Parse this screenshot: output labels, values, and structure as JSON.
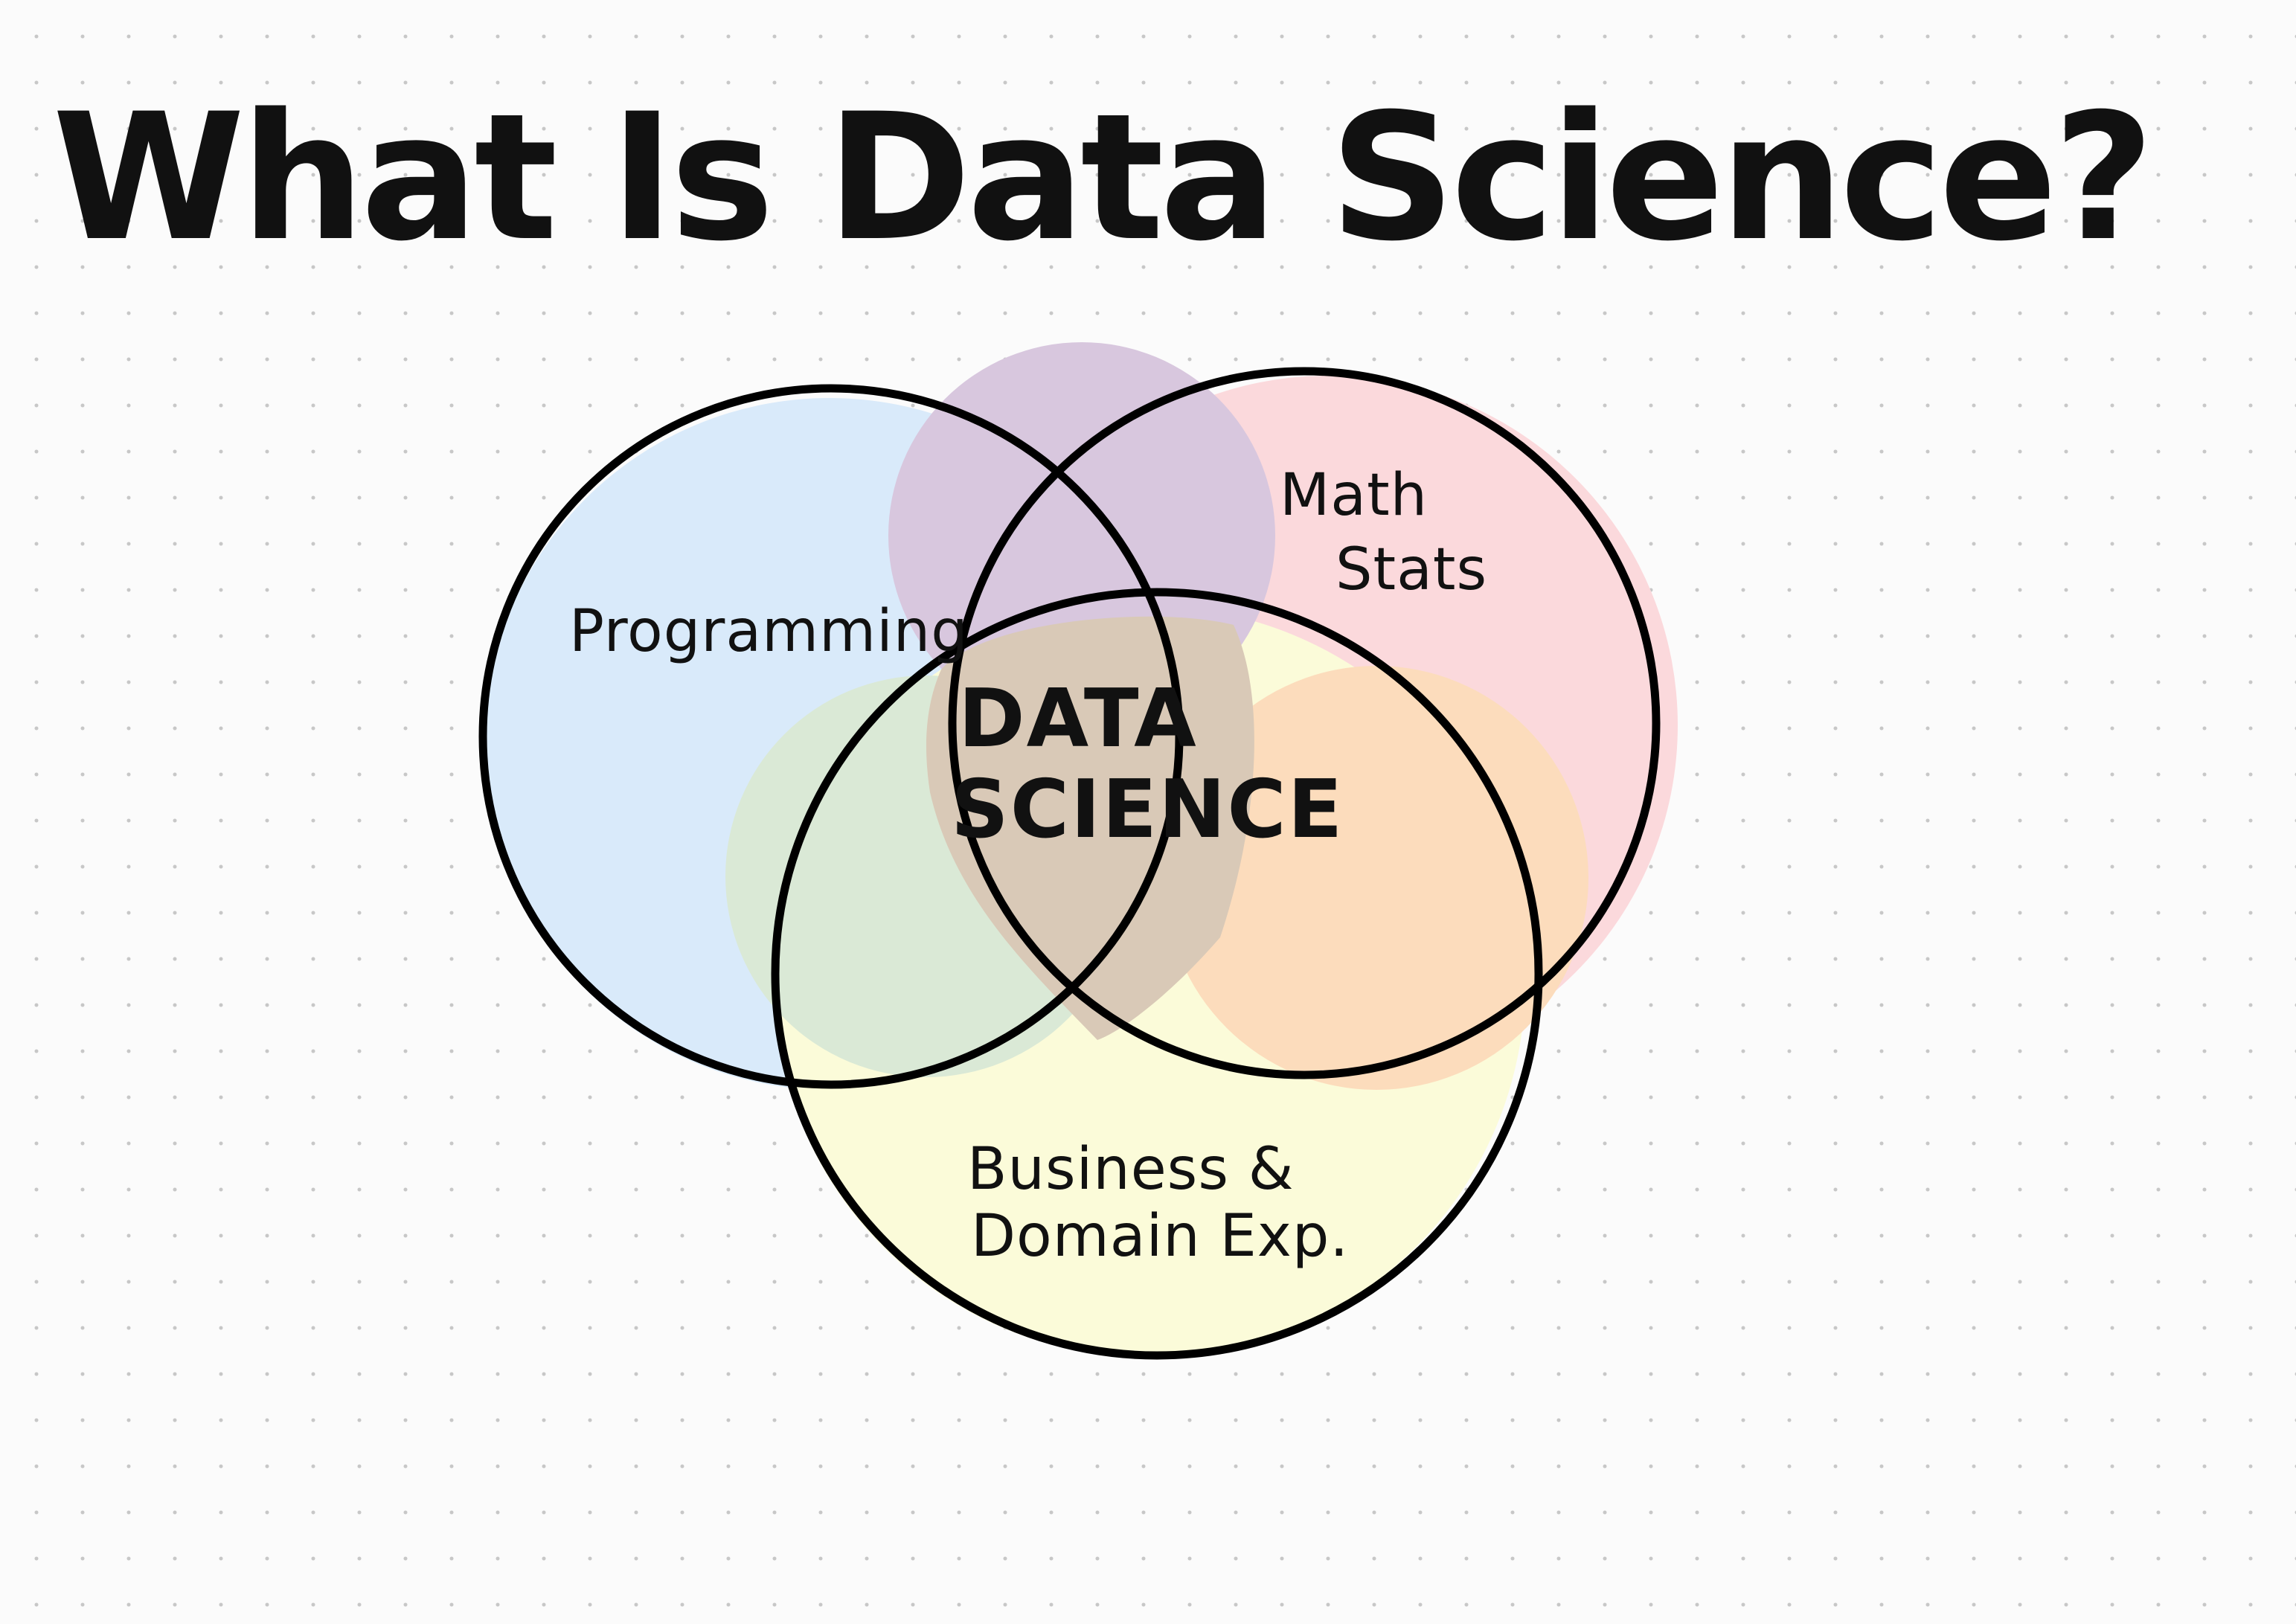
{
  "title": "What Is Data Science?",
  "circles": [
    {
      "id": "programming",
      "label": "Programming",
      "color": "#d9eafa"
    },
    {
      "id": "math-stats",
      "label_lines": [
        "Math",
        "Stats"
      ],
      "color": "#fbd9dc"
    },
    {
      "id": "business-domain",
      "label_lines": [
        "Business &",
        "Domain Exp."
      ],
      "color": "#fbfbd9"
    }
  ],
  "intersection_colors": {
    "programming_math": "#d8c7de",
    "programming_business": "#dae9d6",
    "math_business": "#fcdcbc",
    "all_three": "#d9c9b7"
  },
  "center": {
    "label_lines": [
      "DATA",
      "SCIENCE"
    ]
  },
  "colors": {
    "outline": "#000000",
    "text": "#111111",
    "background": "#fbfbfb",
    "grid_dots": "#c7c7c7"
  }
}
